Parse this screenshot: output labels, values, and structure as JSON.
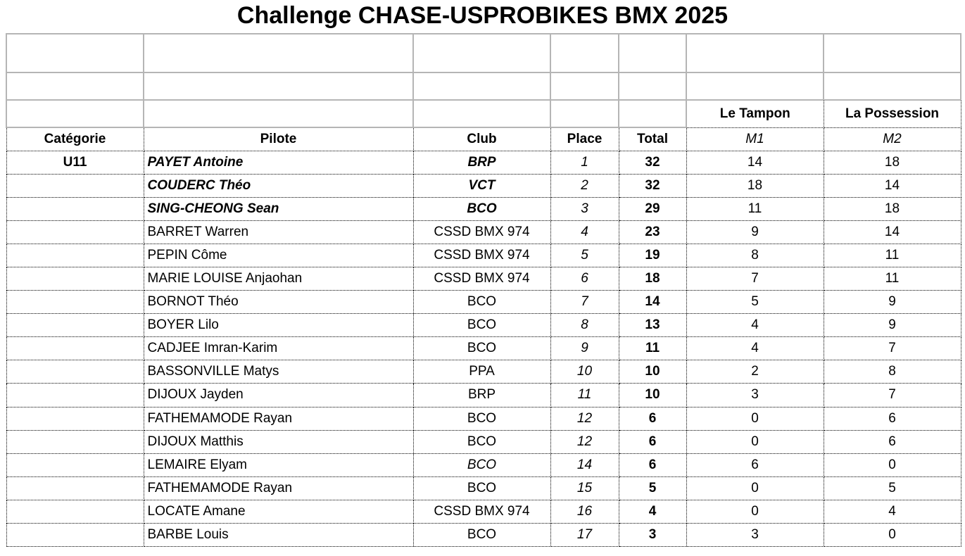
{
  "title": "Challenge CHASE-USPROBIKES BMX 2025",
  "venues": [
    "Le Tampon",
    "La Possession"
  ],
  "headers": {
    "categorie": "Catégorie",
    "pilote": "Pilote",
    "club": "Club",
    "place": "Place",
    "total": "Total",
    "m1": "M1",
    "m2": "M2"
  },
  "rows": [
    {
      "categorie": "U11",
      "pilote": "PAYET Antoine",
      "club": "BRP",
      "place": "1",
      "total": "32",
      "m1": "14",
      "m2": "18",
      "highlight": true
    },
    {
      "categorie": "",
      "pilote": "COUDERC Théo",
      "club": "VCT",
      "place": "2",
      "total": "32",
      "m1": "18",
      "m2": "14",
      "highlight": true
    },
    {
      "categorie": "",
      "pilote": "SING-CHEONG Sean",
      "club": "BCO",
      "place": "3",
      "total": "29",
      "m1": "11",
      "m2": "18",
      "highlight": true
    },
    {
      "categorie": "",
      "pilote": "BARRET Warren",
      "club": "CSSD BMX 974",
      "place": "4",
      "total": "23",
      "m1": "9",
      "m2": "14"
    },
    {
      "categorie": "",
      "pilote": "PEPIN Côme",
      "club": "CSSD BMX 974",
      "place": "5",
      "total": "19",
      "m1": "8",
      "m2": "11"
    },
    {
      "categorie": "",
      "pilote": "MARIE LOUISE Anjaohan",
      "club": "CSSD BMX 974",
      "place": "6",
      "total": "18",
      "m1": "7",
      "m2": "11"
    },
    {
      "categorie": "",
      "pilote": "BORNOT Théo",
      "club": "BCO",
      "place": "7",
      "total": "14",
      "m1": "5",
      "m2": "9"
    },
    {
      "categorie": "",
      "pilote": "BOYER Lilo",
      "club": "BCO",
      "place": "8",
      "total": "13",
      "m1": "4",
      "m2": "9"
    },
    {
      "categorie": "",
      "pilote": "CADJEE Imran-Karim",
      "club": "BCO",
      "place": "9",
      "total": "11",
      "m1": "4",
      "m2": "7"
    },
    {
      "categorie": "",
      "pilote": "BASSONVILLE Matys",
      "club": "PPA",
      "place": "10",
      "total": "10",
      "m1": "2",
      "m2": "8"
    },
    {
      "categorie": "",
      "pilote": "DIJOUX Jayden",
      "club": "BRP",
      "place": "11",
      "total": "10",
      "m1": "3",
      "m2": "7"
    },
    {
      "categorie": "",
      "pilote": "FATHEMAMODE Rayan",
      "club": "BCO",
      "place": "12",
      "total": "6",
      "m1": "0",
      "m2": "6"
    },
    {
      "categorie": "",
      "pilote": "DIJOUX Matthis",
      "club": "BCO",
      "place": "12",
      "total": "6",
      "m1": "0",
      "m2": "6"
    },
    {
      "categorie": "",
      "pilote": "LEMAIRE Elyam",
      "club": "BCO",
      "place": "14",
      "total": "6",
      "m1": "6",
      "m2": "0",
      "club_italic": true
    },
    {
      "categorie": "",
      "pilote": "FATHEMAMODE Rayan",
      "club": "BCO",
      "place": "15",
      "total": "5",
      "m1": "0",
      "m2": "5"
    },
    {
      "categorie": "",
      "pilote": "LOCATE Amane",
      "club": "CSSD BMX 974",
      "place": "16",
      "total": "4",
      "m1": "0",
      "m2": "4"
    },
    {
      "categorie": "",
      "pilote": "BARBE Louis",
      "club": "BCO",
      "place": "17",
      "total": "3",
      "m1": "3",
      "m2": "0"
    }
  ]
}
